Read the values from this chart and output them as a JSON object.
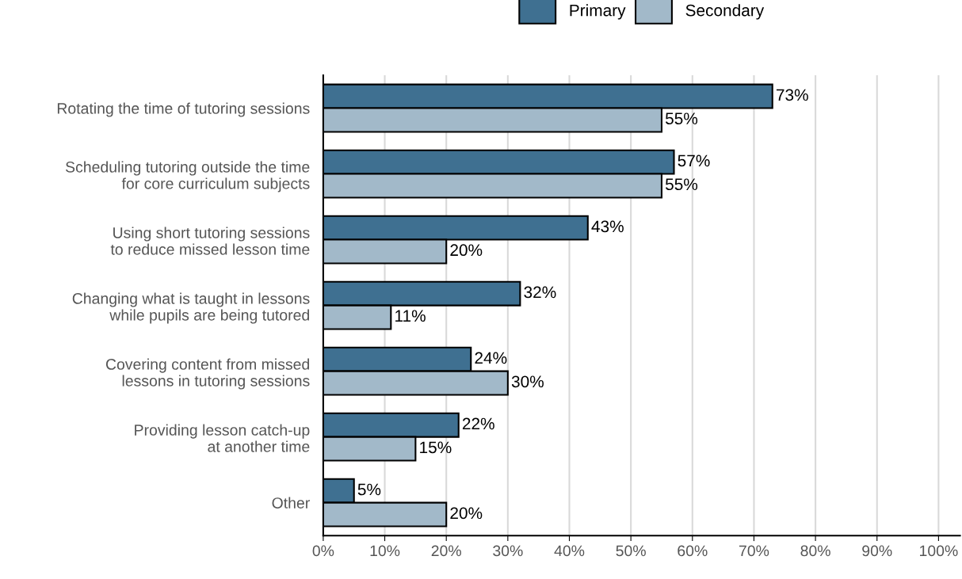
{
  "chart_data": {
    "type": "bar",
    "orientation": "horizontal",
    "categories": [
      "Rotating the time of tutoring sessions",
      "Scheduling tutoring outside the time\nfor core curriculum subjects",
      "Using short tutoring sessions\nto reduce missed lesson time",
      "Changing what is taught in lessons\nwhile pupils are being tutored",
      "Covering content from missed\nlessons in tutoring sessions",
      "Providing lesson catch-up\nat another time",
      "Other"
    ],
    "series": [
      {
        "name": "Primary",
        "color": "#3f7091",
        "values": [
          73,
          57,
          43,
          32,
          24,
          22,
          5
        ],
        "value_labels": [
          "73%",
          "57%",
          "43%",
          "32%",
          "24%",
          "22%",
          "5%"
        ]
      },
      {
        "name": "Secondary",
        "color": "#a2b9c9",
        "values": [
          55,
          55,
          20,
          11,
          30,
          15,
          20
        ],
        "value_labels": [
          "55%",
          "55%",
          "20%",
          "11%",
          "30%",
          "15%",
          "20%"
        ]
      }
    ],
    "xlim": [
      0,
      103.5
    ],
    "xticks": [
      {
        "value": 0,
        "label": "0%"
      },
      {
        "value": 10,
        "label": "10%"
      },
      {
        "value": 20,
        "label": "20%"
      },
      {
        "value": 30,
        "label": "30%"
      },
      {
        "value": 40,
        "label": "40%"
      },
      {
        "value": 50,
        "label": "50%"
      },
      {
        "value": 60,
        "label": "60%"
      },
      {
        "value": 70,
        "label": "70%"
      },
      {
        "value": 80,
        "label": "80%"
      },
      {
        "value": 90,
        "label": "90%"
      },
      {
        "value": 100,
        "label": "100%"
      }
    ],
    "grid": "x",
    "legend": "top"
  }
}
